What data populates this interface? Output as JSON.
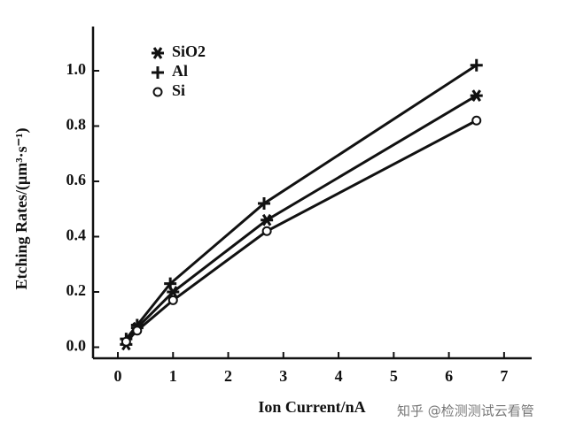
{
  "chart_data": {
    "type": "line",
    "y_label": "Etching Rates/(μm³·s⁻¹)",
    "x_label": "Ion Current/nA",
    "watermark": "知乎 @检测测试云看管",
    "xlim": [
      -0.45,
      7.5
    ],
    "ylim": [
      -0.04,
      1.16
    ],
    "xticks": [
      0,
      1,
      2,
      3,
      4,
      5,
      6,
      7
    ],
    "yticks": [
      {
        "value": 0,
        "label": "0.0"
      },
      {
        "value": 0.2,
        "label": "0.2"
      },
      {
        "value": 0.4,
        "label": "0.4"
      },
      {
        "value": 0.6,
        "label": "0.6"
      },
      {
        "value": 0.8,
        "label": "0.8"
      },
      {
        "value": 1.0,
        "label": "1.0"
      }
    ],
    "color": "#111",
    "series": [
      {
        "name": "SiO2",
        "marker": "star",
        "x": [
          0.15,
          0.35,
          1.0,
          2.7,
          6.5
        ],
        "values": [
          0.01,
          0.07,
          0.2,
          0.46,
          0.91
        ]
      },
      {
        "name": "Al",
        "marker": "plus",
        "x": [
          0.15,
          0.35,
          0.95,
          2.65,
          6.5
        ],
        "values": [
          0.03,
          0.08,
          0.23,
          0.52,
          1.02
        ]
      },
      {
        "name": "Si",
        "marker": "circle",
        "x": [
          0.15,
          0.35,
          1.0,
          2.7,
          6.5
        ],
        "values": [
          0.02,
          0.06,
          0.17,
          0.42,
          0.82
        ]
      }
    ]
  }
}
